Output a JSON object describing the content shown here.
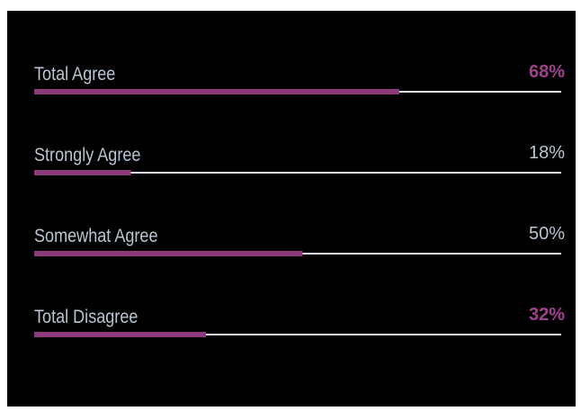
{
  "chart_data": {
    "type": "bar",
    "categories": [
      "Total Agree",
      "Strongly Agree",
      "Somewhat Agree",
      "Total Disagree"
    ],
    "values": [
      68,
      18,
      50,
      32
    ],
    "value_labels": [
      "68%",
      "18%",
      "50%",
      "32%"
    ],
    "bold": [
      true,
      false,
      false,
      true
    ],
    "color": "#8d3a7b",
    "xlim": [
      0,
      100
    ]
  }
}
